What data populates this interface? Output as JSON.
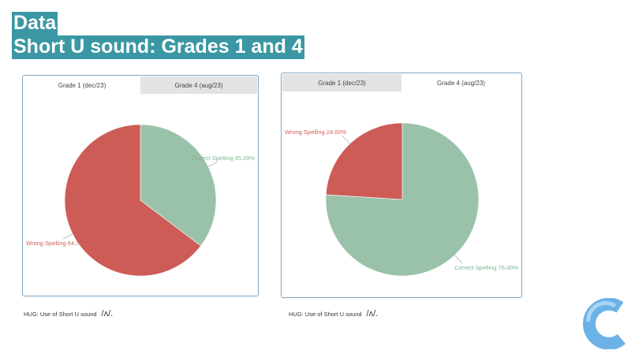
{
  "heading": {
    "line1": "Data",
    "line2": "Short U sound: Grades 1 and 4"
  },
  "charts": [
    {
      "tabs": [
        "Grade 1 (dec/23)",
        "Grade 4 (aug/23)"
      ],
      "active_tab": 0,
      "chart_data": {
        "type": "pie",
        "labels": [
          "Correct Spelling",
          "Wrong Spelling"
        ],
        "values": [
          35.29,
          64.71
        ],
        "label_text": [
          "Correct Spelling 35.29%",
          "Wrong Spelling 64.71%"
        ],
        "colors": [
          "#9ac2aa",
          "#cd5c57"
        ]
      },
      "caption": "HUG: Use of Short U sound",
      "phoneme": "/ʌ/."
    },
    {
      "tabs": [
        "Grade 1 (dec/23)",
        "Grade 4 (aug/23)"
      ],
      "active_tab": 1,
      "chart_data": {
        "type": "pie",
        "labels": [
          "Correct Spelling",
          "Wrong Spelling"
        ],
        "values": [
          76.0,
          24.0
        ],
        "label_text": [
          "Correct Spelling 76.00%",
          "Wrong Spelling 24.00%"
        ],
        "colors": [
          "#9ac2aa",
          "#cd5c57"
        ]
      },
      "caption": "HUG: Use of Short U sound",
      "phoneme": "/ʌ/."
    }
  ]
}
